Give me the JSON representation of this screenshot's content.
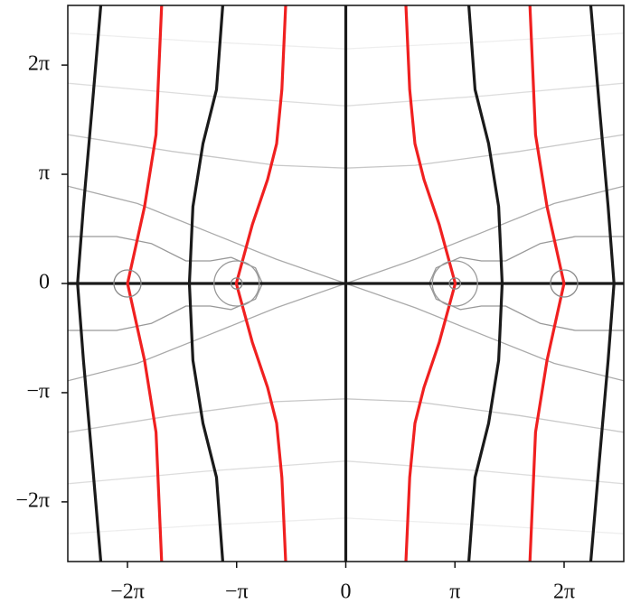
{
  "chart_data": {
    "type": "line",
    "xlim": [
      -8,
      8
    ],
    "ylim": [
      -8,
      8
    ],
    "xticks": [
      {
        "value": -6.283,
        "label": "−2π"
      },
      {
        "value": -3.1416,
        "label": "−π"
      },
      0,
      {
        "value": 3.1416,
        "label": "π"
      },
      {
        "value": 6.283,
        "label": "2π"
      }
    ],
    "yticks": [
      {
        "value": -6.283,
        "label": "−2π"
      },
      {
        "value": -3.1416,
        "label": "−π"
      },
      0,
      {
        "value": 3.1416,
        "label": "π"
      },
      {
        "value": 6.283,
        "label": "2π"
      }
    ],
    "series": [
      {
        "color": "#eeeeee",
        "linewidth": 1.3,
        "x": [
          -8,
          -4,
          0,
          4,
          8
        ],
        "y": [
          7.2,
          6.95,
          6.75,
          6.95,
          7.2
        ]
      },
      {
        "color": "#eeeeee",
        "linewidth": 1.3,
        "x": [
          -8,
          -4,
          0,
          4,
          8
        ],
        "y": [
          -7.2,
          -6.95,
          -6.75,
          -6.95,
          -7.2
        ]
      },
      {
        "color": "#dddddd",
        "linewidth": 1.3,
        "x": [
          -8,
          -4,
          0,
          4,
          8
        ],
        "y": [
          5.76,
          5.4,
          5.11,
          5.4,
          5.76
        ]
      },
      {
        "color": "#dddddd",
        "linewidth": 1.3,
        "x": [
          -8,
          -4,
          0,
          4,
          8
        ],
        "y": [
          -5.76,
          -5.4,
          -5.11,
          -5.4,
          -5.76
        ]
      },
      {
        "color": "#c8c8c8",
        "linewidth": 1.3,
        "x": [
          -8,
          -5,
          -2,
          0,
          2,
          5,
          8
        ],
        "y": [
          4.28,
          3.8,
          3.4,
          3.32,
          3.4,
          3.8,
          4.28
        ]
      },
      {
        "color": "#c8c8c8",
        "linewidth": 1.3,
        "x": [
          -8,
          -5,
          -2,
          0,
          2,
          5,
          8
        ],
        "y": [
          -4.28,
          -3.8,
          -3.4,
          -3.32,
          -3.4,
          -3.8,
          -4.28
        ]
      },
      {
        "color": "#aaaaaa",
        "linewidth": 1.3,
        "x": [
          -8,
          -6,
          -4,
          -2,
          0,
          2,
          4,
          6,
          8
        ],
        "y": [
          2.8,
          2.3,
          1.5,
          0.7,
          0,
          0.7,
          1.5,
          2.3,
          2.8
        ]
      },
      {
        "color": "#aaaaaa",
        "linewidth": 1.3,
        "x": [
          -8,
          -6,
          -4,
          -2,
          0,
          2,
          4,
          6,
          8
        ],
        "y": [
          -2.8,
          -2.3,
          -1.5,
          -0.7,
          0,
          -0.7,
          -1.5,
          -2.3,
          -2.8
        ]
      },
      {
        "color": "#999999",
        "linewidth": 1.3,
        "x": [
          -8,
          -6.6,
          -5.6,
          -4.6,
          -3.9,
          -3.3,
          -2.6,
          -2.4
        ],
        "y": [
          1.35,
          1.35,
          1.15,
          0.65,
          0.65,
          0.75,
          0.45,
          0
        ]
      },
      {
        "color": "#999999",
        "linewidth": 1.3,
        "x": [
          -8,
          -6.6,
          -5.6,
          -4.6,
          -3.9,
          -3.3,
          -2.6,
          -2.4
        ],
        "y": [
          -1.35,
          -1.35,
          -1.15,
          -0.65,
          -0.65,
          -0.75,
          -0.45,
          0
        ]
      },
      {
        "color": "#999999",
        "linewidth": 1.3,
        "x": [
          8,
          6.6,
          5.6,
          4.6,
          3.9,
          3.3,
          2.6,
          2.4
        ],
        "y": [
          1.35,
          1.35,
          1.15,
          0.65,
          0.65,
          0.75,
          0.45,
          0
        ]
      },
      {
        "color": "#999999",
        "linewidth": 1.3,
        "x": [
          8,
          6.6,
          5.6,
          4.6,
          3.9,
          3.3,
          2.6,
          2.4
        ],
        "y": [
          -1.35,
          -1.35,
          -1.15,
          -0.65,
          -0.65,
          -0.75,
          -0.45,
          0
        ]
      },
      {
        "color": "#1a1a1a",
        "linewidth": 3.2,
        "x": [
          0,
          0
        ],
        "y": [
          -8,
          8
        ]
      },
      {
        "color": "#1a1a1a",
        "linewidth": 3.2,
        "x": [
          -8,
          8
        ],
        "y": [
          0,
          0
        ]
      },
      {
        "color": "#1a1a1a",
        "linewidth": 3.2,
        "x": [
          3.54,
          3.72,
          4.11,
          4.4,
          4.5,
          4.4,
          4.11,
          3.72,
          3.54
        ],
        "y": [
          8,
          5.58,
          4.02,
          2.21,
          0,
          -2.21,
          -4.02,
          -5.58,
          -8
        ]
      },
      {
        "color": "#1a1a1a",
        "linewidth": 3.2,
        "x": [
          -3.54,
          -3.72,
          -4.11,
          -4.4,
          -4.5,
          -4.4,
          -4.11,
          -3.72,
          -3.54
        ],
        "y": [
          8,
          5.58,
          4.02,
          2.21,
          0,
          -2.21,
          -4.02,
          -5.58,
          -8
        ]
      },
      {
        "color": "#1a1a1a",
        "linewidth": 3.2,
        "x": [
          7.05,
          7.3,
          7.55,
          7.72,
          7.55,
          7.3,
          7.05
        ],
        "y": [
          8,
          5.06,
          2.21,
          0,
          -2.21,
          -5.06,
          -8
        ]
      },
      {
        "color": "#1a1a1a",
        "linewidth": 3.2,
        "x": [
          -7.05,
          -7.3,
          -7.55,
          -7.72,
          -7.55,
          -7.3,
          -7.05
        ],
        "y": [
          8,
          5.06,
          2.21,
          0,
          -2.21,
          -5.06,
          -8
        ]
      },
      {
        "color": "#f02020",
        "linewidth": 3.2,
        "x": [
          1.73,
          1.84,
          1.99,
          2.25,
          2.69,
          3.15,
          2.69,
          2.25,
          1.99,
          1.84,
          1.73
        ],
        "y": [
          8,
          5.58,
          4.02,
          2.99,
          1.69,
          0,
          -1.69,
          -2.99,
          -4.02,
          -5.58,
          -8
        ]
      },
      {
        "color": "#f02020",
        "linewidth": 3.2,
        "x": [
          -1.73,
          -1.84,
          -1.99,
          -2.25,
          -2.69,
          -3.15,
          -2.69,
          -2.25,
          -1.99,
          -1.84,
          -1.73
        ],
        "y": [
          8,
          5.58,
          4.02,
          2.99,
          1.69,
          0,
          -1.69,
          -2.99,
          -4.02,
          -5.58,
          -8
        ]
      },
      {
        "color": "#f02020",
        "linewidth": 3.2,
        "x": [
          5.3,
          5.46,
          5.79,
          6.28,
          5.79,
          5.46,
          5.3
        ],
        "y": [
          8,
          4.28,
          2.21,
          0,
          -2.21,
          -4.28,
          -8
        ]
      },
      {
        "color": "#f02020",
        "linewidth": 3.2,
        "x": [
          -5.3,
          -5.46,
          -5.79,
          -6.28,
          -5.79,
          -5.46,
          -5.3
        ],
        "y": [
          8,
          4.28,
          2.21,
          0,
          -2.21,
          -4.28,
          -8
        ]
      }
    ],
    "circles": [
      {
        "x": 6.283,
        "y": 0,
        "r": 0.39,
        "color": "#888888"
      },
      {
        "x": -6.283,
        "y": 0,
        "r": 0.39,
        "color": "#888888"
      },
      {
        "x": 3.1416,
        "y": 0,
        "r": 0.65,
        "color": "#999999"
      },
      {
        "x": -3.1416,
        "y": 0,
        "r": 0.65,
        "color": "#999999"
      },
      {
        "x": 3.1416,
        "y": 0,
        "r": 0.16,
        "color": "#888888"
      },
      {
        "x": -3.1416,
        "y": 0,
        "r": 0.16,
        "color": "#888888"
      }
    ]
  }
}
